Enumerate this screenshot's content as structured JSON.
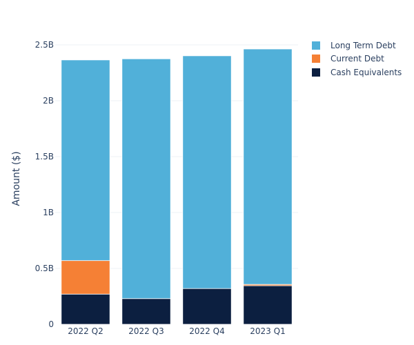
{
  "chart_data": {
    "type": "bar",
    "stacked": true,
    "categories": [
      "2022 Q2",
      "2022 Q3",
      "2022 Q4",
      "2023 Q1"
    ],
    "series": [
      {
        "name": "Cash Equivalents",
        "color": "#0c1f40",
        "values": [
          270000000,
          230000000,
          320000000,
          345000000
        ]
      },
      {
        "name": "Current Debt",
        "color": "#f58035",
        "values": [
          300000000,
          0,
          0,
          12000000
        ]
      },
      {
        "name": "Long Term Debt",
        "color": "#51b0d9",
        "values": [
          1795000000,
          2145000000,
          2082000000,
          2106000000
        ]
      }
    ],
    "ylabel": "Amount ($)",
    "ylim": [
      0,
      2500000000
    ],
    "yticks": [
      {
        "value": 0,
        "label": "0"
      },
      {
        "value": 500000000,
        "label": "0.5B"
      },
      {
        "value": 1000000000,
        "label": "1B"
      },
      {
        "value": 1500000000,
        "label": "1.5B"
      },
      {
        "value": 2000000000,
        "label": "2B"
      },
      {
        "value": 2500000000,
        "label": "2.5B"
      }
    ],
    "legend_position": "top-right",
    "legend_order": [
      "Long Term Debt",
      "Current Debt",
      "Cash Equivalents"
    ],
    "grid": true
  }
}
